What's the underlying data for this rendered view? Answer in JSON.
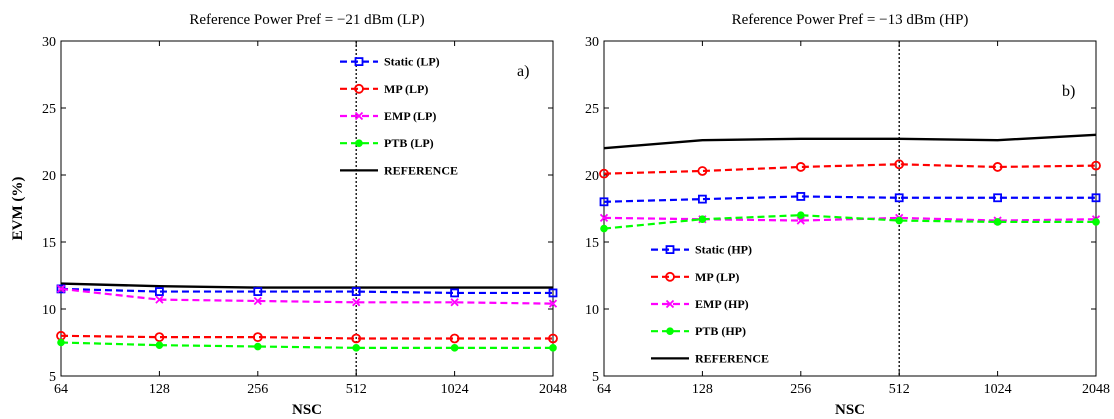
{
  "chart_data": [
    {
      "type": "line",
      "title": "Reference Power Pref = −21 dBm (LP)",
      "panel_label": "a)",
      "xlabel": "NSC",
      "ylabel": "EVM (%)",
      "x_ticks": [
        "64",
        "128",
        "256",
        "512",
        "1024",
        "2048"
      ],
      "y_ticks": [
        "5",
        "10",
        "15",
        "20",
        "25",
        "30"
      ],
      "ylim": [
        5,
        30
      ],
      "x_scale": "log2",
      "grid": false,
      "dashed_marker_at": "512",
      "legend_position": "top-right",
      "x": [
        64,
        128,
        256,
        512,
        1024,
        2048
      ],
      "series": [
        {
          "name": "Static (LP)",
          "values": [
            11.5,
            11.3,
            11.3,
            11.3,
            11.2,
            11.2
          ],
          "color": "#0000ff",
          "marker": "square",
          "dash": true
        },
        {
          "name": "MP (LP)",
          "values": [
            8.0,
            7.9,
            7.9,
            7.8,
            7.8,
            7.8
          ],
          "color": "#ff0000",
          "marker": "circle",
          "dash": true
        },
        {
          "name": "EMP (LP)",
          "values": [
            11.5,
            10.7,
            10.6,
            10.5,
            10.5,
            10.4
          ],
          "color": "#ff00ff",
          "marker": "x",
          "dash": true
        },
        {
          "name": "PTB (LP)",
          "values": [
            7.5,
            7.3,
            7.2,
            7.1,
            7.1,
            7.1
          ],
          "color": "#00ff00",
          "marker": "dot",
          "dash": true
        },
        {
          "name": "REFERENCE",
          "values": [
            11.9,
            11.7,
            11.6,
            11.6,
            11.6,
            11.6
          ],
          "color": "#000000",
          "marker": "none",
          "dash": false
        }
      ]
    },
    {
      "type": "line",
      "title": "Reference Power Pref = −13 dBm (HP)",
      "panel_label": "b)",
      "xlabel": "NSC",
      "ylabel": "",
      "x_ticks": [
        "64",
        "128",
        "256",
        "512",
        "1024",
        "2048"
      ],
      "y_ticks": [
        "5",
        "10",
        "15",
        "20",
        "25",
        "30"
      ],
      "ylim": [
        5,
        30
      ],
      "x_scale": "log2",
      "grid": false,
      "dashed_marker_at": "512",
      "legend_position": "bottom-left",
      "x": [
        64,
        128,
        256,
        512,
        1024,
        2048
      ],
      "series": [
        {
          "name": "Static (HP)",
          "values": [
            18.0,
            18.2,
            18.4,
            18.3,
            18.3,
            18.3
          ],
          "color": "#0000ff",
          "marker": "square",
          "dash": true
        },
        {
          "name": "MP (LP)",
          "values": [
            20.1,
            20.3,
            20.6,
            20.8,
            20.6,
            20.7
          ],
          "color": "#ff0000",
          "marker": "circle",
          "dash": true
        },
        {
          "name": "EMP (HP)",
          "values": [
            16.8,
            16.7,
            16.6,
            16.8,
            16.6,
            16.7
          ],
          "color": "#ff00ff",
          "marker": "x",
          "dash": true
        },
        {
          "name": "PTB (HP)",
          "values": [
            16.0,
            16.7,
            17.0,
            16.6,
            16.5,
            16.5
          ],
          "color": "#00ff00",
          "marker": "dot",
          "dash": true
        },
        {
          "name": "REFERENCE",
          "values": [
            22.0,
            22.6,
            22.7,
            22.7,
            22.6,
            23.0
          ],
          "color": "#000000",
          "marker": "none",
          "dash": false
        }
      ]
    }
  ]
}
